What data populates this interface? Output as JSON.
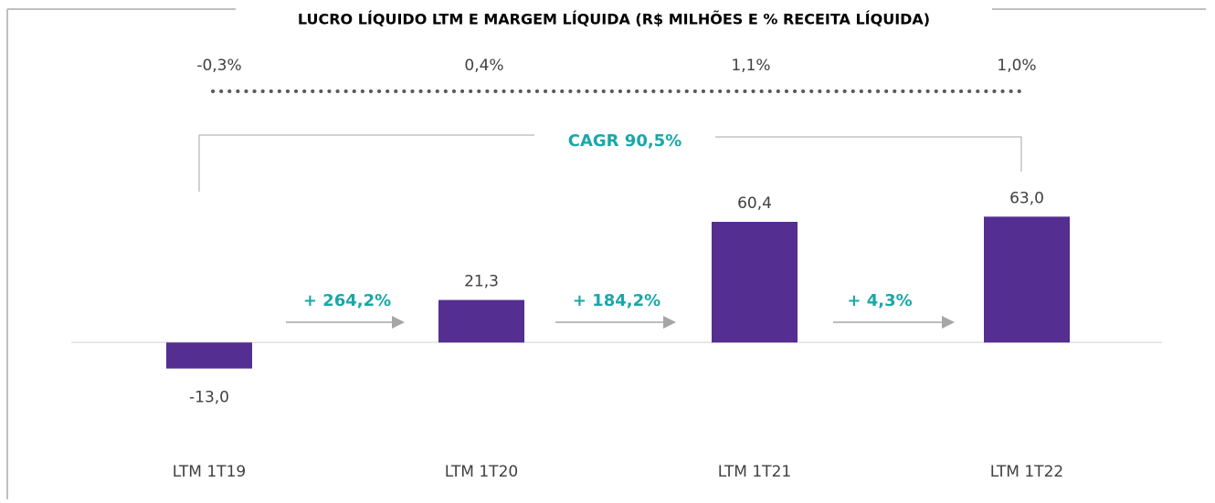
{
  "chart_data": {
    "type": "bar",
    "title": "LUCRO LÍQUIDO LTM E MARGEM LÍQUIDA (R$ MILHÕES E % RECEITA LÍQUIDA)",
    "categories": [
      "LTM 1T19",
      "LTM 1T20",
      "LTM 1T21",
      "LTM 1T22"
    ],
    "values": [
      -13.0,
      21.3,
      60.4,
      63.0
    ],
    "value_labels": [
      "-13,0",
      "21,3",
      "60,4",
      "63,0"
    ],
    "color": "#542e91",
    "ylim": [
      -20,
      70
    ],
    "margin": {
      "values": [
        -0.3,
        0.4,
        1.1,
        1.0
      ],
      "value_labels": [
        "-0,3%",
        "0,4%",
        "1,1%",
        "1,0%"
      ]
    },
    "annotations": {
      "growth": [
        "+ 264,2%",
        "+ 184,2%",
        "+ 4,3%"
      ],
      "cagr": "CAGR 90,5%"
    }
  }
}
